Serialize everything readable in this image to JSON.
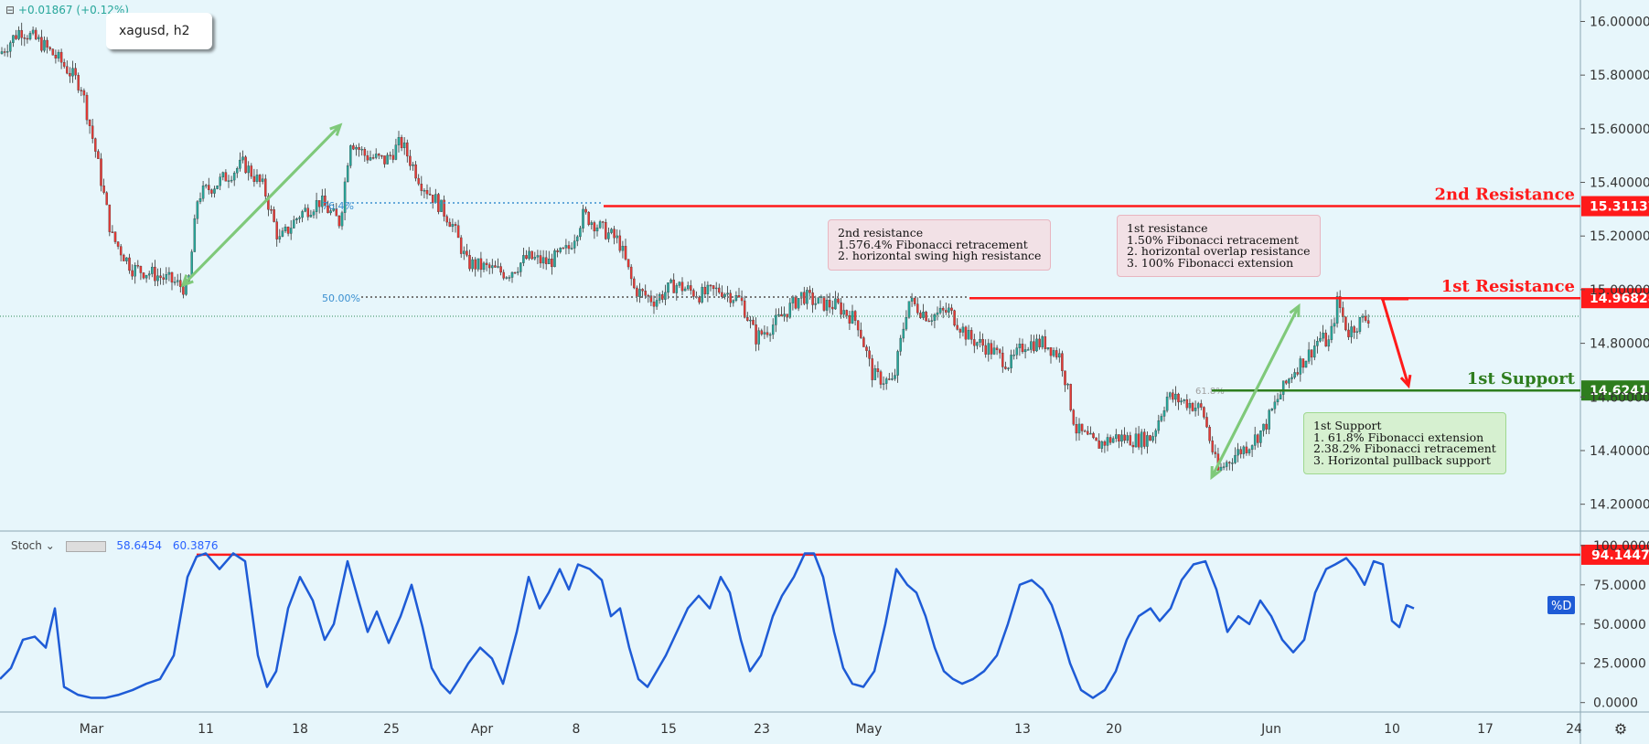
{
  "header": {
    "symbol": "xagusd, h2",
    "change": "+0.01867 (+0.12%)"
  },
  "stoch": {
    "label": "Stoch",
    "k": "58.6454",
    "d": "60.3876",
    "d_tag": "%D"
  },
  "levels": {
    "r2": {
      "name": "2nd Resistance",
      "price": "15.31137",
      "value": 15.31137,
      "color": "#ff1a1a"
    },
    "r1": {
      "name": "1st Resistance",
      "price": "14.96828",
      "value": 14.96828,
      "color": "#ff1a1a"
    },
    "s1": {
      "name": "1st Support",
      "price": "14.62411",
      "value": 14.62411,
      "color": "#2e7d1e"
    },
    "stoch_line": {
      "price": "94.1447",
      "value": 94.1447
    }
  },
  "notes": {
    "r2": "2nd resistance\n1.576.4% Fibonacci retracement\n2. horizontal swing high resistance",
    "r1": "1st resistance\n1.50% Fibonacci retracement\n2. horizontal overlap resistance\n3. 100% Fibonacci extension",
    "s1": "1st Support\n1. 61.8% Fibonacci extension\n2.38.2% Fibonacci retracement\n3. Horizontal pullback support"
  },
  "fib_labels": {
    "f76": "76.4%",
    "f50": "50.00%",
    "f61": "61.8%"
  },
  "colors": {
    "up": "#26a69a",
    "down": "#e53935",
    "stoch": "#1e5bd6",
    "arrow_green": "#7fc97a",
    "arrow_red": "#ff1a1a"
  },
  "chart_data": {
    "type": "candlestick",
    "price_axis": {
      "ylim": [
        14.1,
        16.08
      ],
      "ticks": [
        "16.00000",
        "15.80000",
        "15.60000",
        "15.40000",
        "15.20000",
        "15.00000",
        "14.80000",
        "14.60000",
        "14.40000",
        "14.20000"
      ]
    },
    "stoch_axis": {
      "ylim": [
        -6,
        104
      ],
      "ticks": [
        "100.0000",
        "75.0000",
        "50.0000",
        "25.0000",
        "0.0000"
      ]
    },
    "time_axis": {
      "labels": [
        "Mar",
        "11",
        "18",
        "25",
        "Apr",
        "8",
        "15",
        "23",
        "May",
        "13",
        "20",
        "Jun",
        "10",
        "17",
        "24"
      ]
    },
    "price_path": [
      [
        0,
        15.88
      ],
      [
        20,
        15.97
      ],
      [
        40,
        15.92
      ],
      [
        60,
        15.85
      ],
      [
        80,
        15.76
      ],
      [
        95,
        15.5
      ],
      [
        110,
        15.2
      ],
      [
        130,
        15.08
      ],
      [
        150,
        15.06
      ],
      [
        170,
        15.03
      ],
      [
        185,
        15.0
      ],
      [
        195,
        15.35
      ],
      [
        215,
        15.4
      ],
      [
        240,
        15.47
      ],
      [
        260,
        15.38
      ],
      [
        275,
        15.18
      ],
      [
        295,
        15.28
      ],
      [
        315,
        15.33
      ],
      [
        335,
        15.25
      ],
      [
        345,
        15.56
      ],
      [
        360,
        15.5
      ],
      [
        380,
        15.48
      ],
      [
        395,
        15.55
      ],
      [
        415,
        15.4
      ],
      [
        430,
        15.33
      ],
      [
        445,
        15.25
      ],
      [
        460,
        15.1
      ],
      [
        480,
        15.08
      ],
      [
        500,
        15.06
      ],
      [
        520,
        15.12
      ],
      [
        540,
        15.1
      ],
      [
        560,
        15.15
      ],
      [
        575,
        15.28
      ],
      [
        595,
        15.22
      ],
      [
        610,
        15.18
      ],
      [
        625,
        15.0
      ],
      [
        645,
        14.96
      ],
      [
        665,
        15.02
      ],
      [
        690,
        14.98
      ],
      [
        710,
        15.0
      ],
      [
        730,
        14.96
      ],
      [
        745,
        14.82
      ],
      [
        765,
        14.88
      ],
      [
        790,
        14.98
      ],
      [
        805,
        14.95
      ],
      [
        825,
        14.94
      ],
      [
        845,
        14.88
      ],
      [
        860,
        14.68
      ],
      [
        880,
        14.65
      ],
      [
        895,
        14.96
      ],
      [
        915,
        14.9
      ],
      [
        935,
        14.92
      ],
      [
        955,
        14.82
      ],
      [
        975,
        14.78
      ],
      [
        995,
        14.72
      ],
      [
        1010,
        14.8
      ],
      [
        1030,
        14.8
      ],
      [
        1045,
        14.75
      ],
      [
        1060,
        14.48
      ],
      [
        1080,
        14.42
      ],
      [
        1100,
        14.45
      ],
      [
        1120,
        14.44
      ],
      [
        1135,
        14.45
      ],
      [
        1150,
        14.6
      ],
      [
        1170,
        14.58
      ],
      [
        1185,
        14.55
      ],
      [
        1200,
        14.32
      ],
      [
        1215,
        14.38
      ],
      [
        1230,
        14.42
      ],
      [
        1245,
        14.48
      ],
      [
        1260,
        14.6
      ],
      [
        1275,
        14.7
      ],
      [
        1290,
        14.76
      ],
      [
        1300,
        14.82
      ],
      [
        1310,
        14.8
      ],
      [
        1318,
        14.96
      ],
      [
        1328,
        14.84
      ],
      [
        1340,
        14.88
      ],
      [
        1350,
        14.9
      ]
    ],
    "stoch_path": [
      [
        0,
        15
      ],
      [
        12,
        22
      ],
      [
        25,
        40
      ],
      [
        38,
        42
      ],
      [
        50,
        35
      ],
      [
        60,
        60
      ],
      [
        70,
        10
      ],
      [
        85,
        5
      ],
      [
        100,
        3
      ],
      [
        115,
        3
      ],
      [
        130,
        5
      ],
      [
        145,
        8
      ],
      [
        160,
        12
      ],
      [
        175,
        15
      ],
      [
        190,
        30
      ],
      [
        205,
        80
      ],
      [
        215,
        93
      ],
      [
        225,
        95
      ],
      [
        240,
        85
      ],
      [
        255,
        95
      ],
      [
        268,
        90
      ],
      [
        282,
        30
      ],
      [
        292,
        10
      ],
      [
        302,
        20
      ],
      [
        315,
        60
      ],
      [
        328,
        80
      ],
      [
        342,
        65
      ],
      [
        355,
        40
      ],
      [
        365,
        50
      ],
      [
        380,
        90
      ],
      [
        392,
        65
      ],
      [
        402,
        45
      ],
      [
        412,
        58
      ],
      [
        425,
        38
      ],
      [
        438,
        55
      ],
      [
        450,
        75
      ],
      [
        462,
        48
      ],
      [
        472,
        22
      ],
      [
        482,
        12
      ],
      [
        492,
        6
      ],
      [
        502,
        15
      ],
      [
        512,
        25
      ],
      [
        525,
        35
      ],
      [
        538,
        28
      ],
      [
        550,
        12
      ],
      [
        565,
        45
      ],
      [
        578,
        80
      ],
      [
        590,
        60
      ],
      [
        600,
        70
      ],
      [
        612,
        85
      ],
      [
        622,
        72
      ],
      [
        632,
        88
      ],
      [
        645,
        85
      ],
      [
        658,
        78
      ],
      [
        668,
        55
      ],
      [
        678,
        60
      ],
      [
        688,
        35
      ],
      [
        698,
        15
      ],
      [
        708,
        10
      ],
      [
        718,
        20
      ],
      [
        728,
        30
      ],
      [
        740,
        45
      ],
      [
        752,
        60
      ],
      [
        764,
        68
      ],
      [
        776,
        60
      ],
      [
        788,
        80
      ],
      [
        798,
        70
      ],
      [
        810,
        40
      ],
      [
        820,
        20
      ],
      [
        832,
        30
      ],
      [
        845,
        55
      ],
      [
        855,
        68
      ],
      [
        868,
        80
      ],
      [
        880,
        95
      ],
      [
        890,
        95
      ],
      [
        900,
        80
      ],
      [
        912,
        45
      ],
      [
        922,
        22
      ],
      [
        932,
        12
      ],
      [
        944,
        10
      ],
      [
        956,
        20
      ],
      [
        968,
        50
      ],
      [
        980,
        85
      ],
      [
        992,
        75
      ],
      [
        1002,
        70
      ],
      [
        1012,
        55
      ],
      [
        1022,
        35
      ],
      [
        1032,
        20
      ],
      [
        1042,
        15
      ],
      [
        1052,
        12
      ],
      [
        1064,
        15
      ],
      [
        1076,
        20
      ],
      [
        1090,
        30
      ],
      [
        1102,
        50
      ],
      [
        1115,
        75
      ],
      [
        1128,
        78
      ],
      [
        1140,
        72
      ],
      [
        1150,
        62
      ],
      [
        1160,
        45
      ],
      [
        1170,
        25
      ],
      [
        1182,
        8
      ],
      [
        1195,
        3
      ],
      [
        1208,
        8
      ],
      [
        1220,
        20
      ],
      [
        1232,
        40
      ],
      [
        1245,
        55
      ],
      [
        1258,
        60
      ],
      [
        1268,
        52
      ],
      [
        1280,
        60
      ],
      [
        1292,
        78
      ],
      [
        1305,
        88
      ],
      [
        1318,
        90
      ],
      [
        1330,
        72
      ],
      [
        1342,
        45
      ],
      [
        1354,
        55
      ],
      [
        1366,
        50
      ],
      [
        1378,
        65
      ],
      [
        1390,
        55
      ],
      [
        1402,
        40
      ],
      [
        1414,
        32
      ],
      [
        1426,
        40
      ],
      [
        1438,
        70
      ],
      [
        1450,
        85
      ],
      [
        1460,
        88
      ],
      [
        1472,
        92
      ],
      [
        1482,
        85
      ],
      [
        1492,
        75
      ],
      [
        1502,
        90
      ],
      [
        1512,
        88
      ],
      [
        1522,
        52
      ],
      [
        1530,
        48
      ],
      [
        1538,
        62
      ],
      [
        1546,
        60
      ]
    ]
  }
}
